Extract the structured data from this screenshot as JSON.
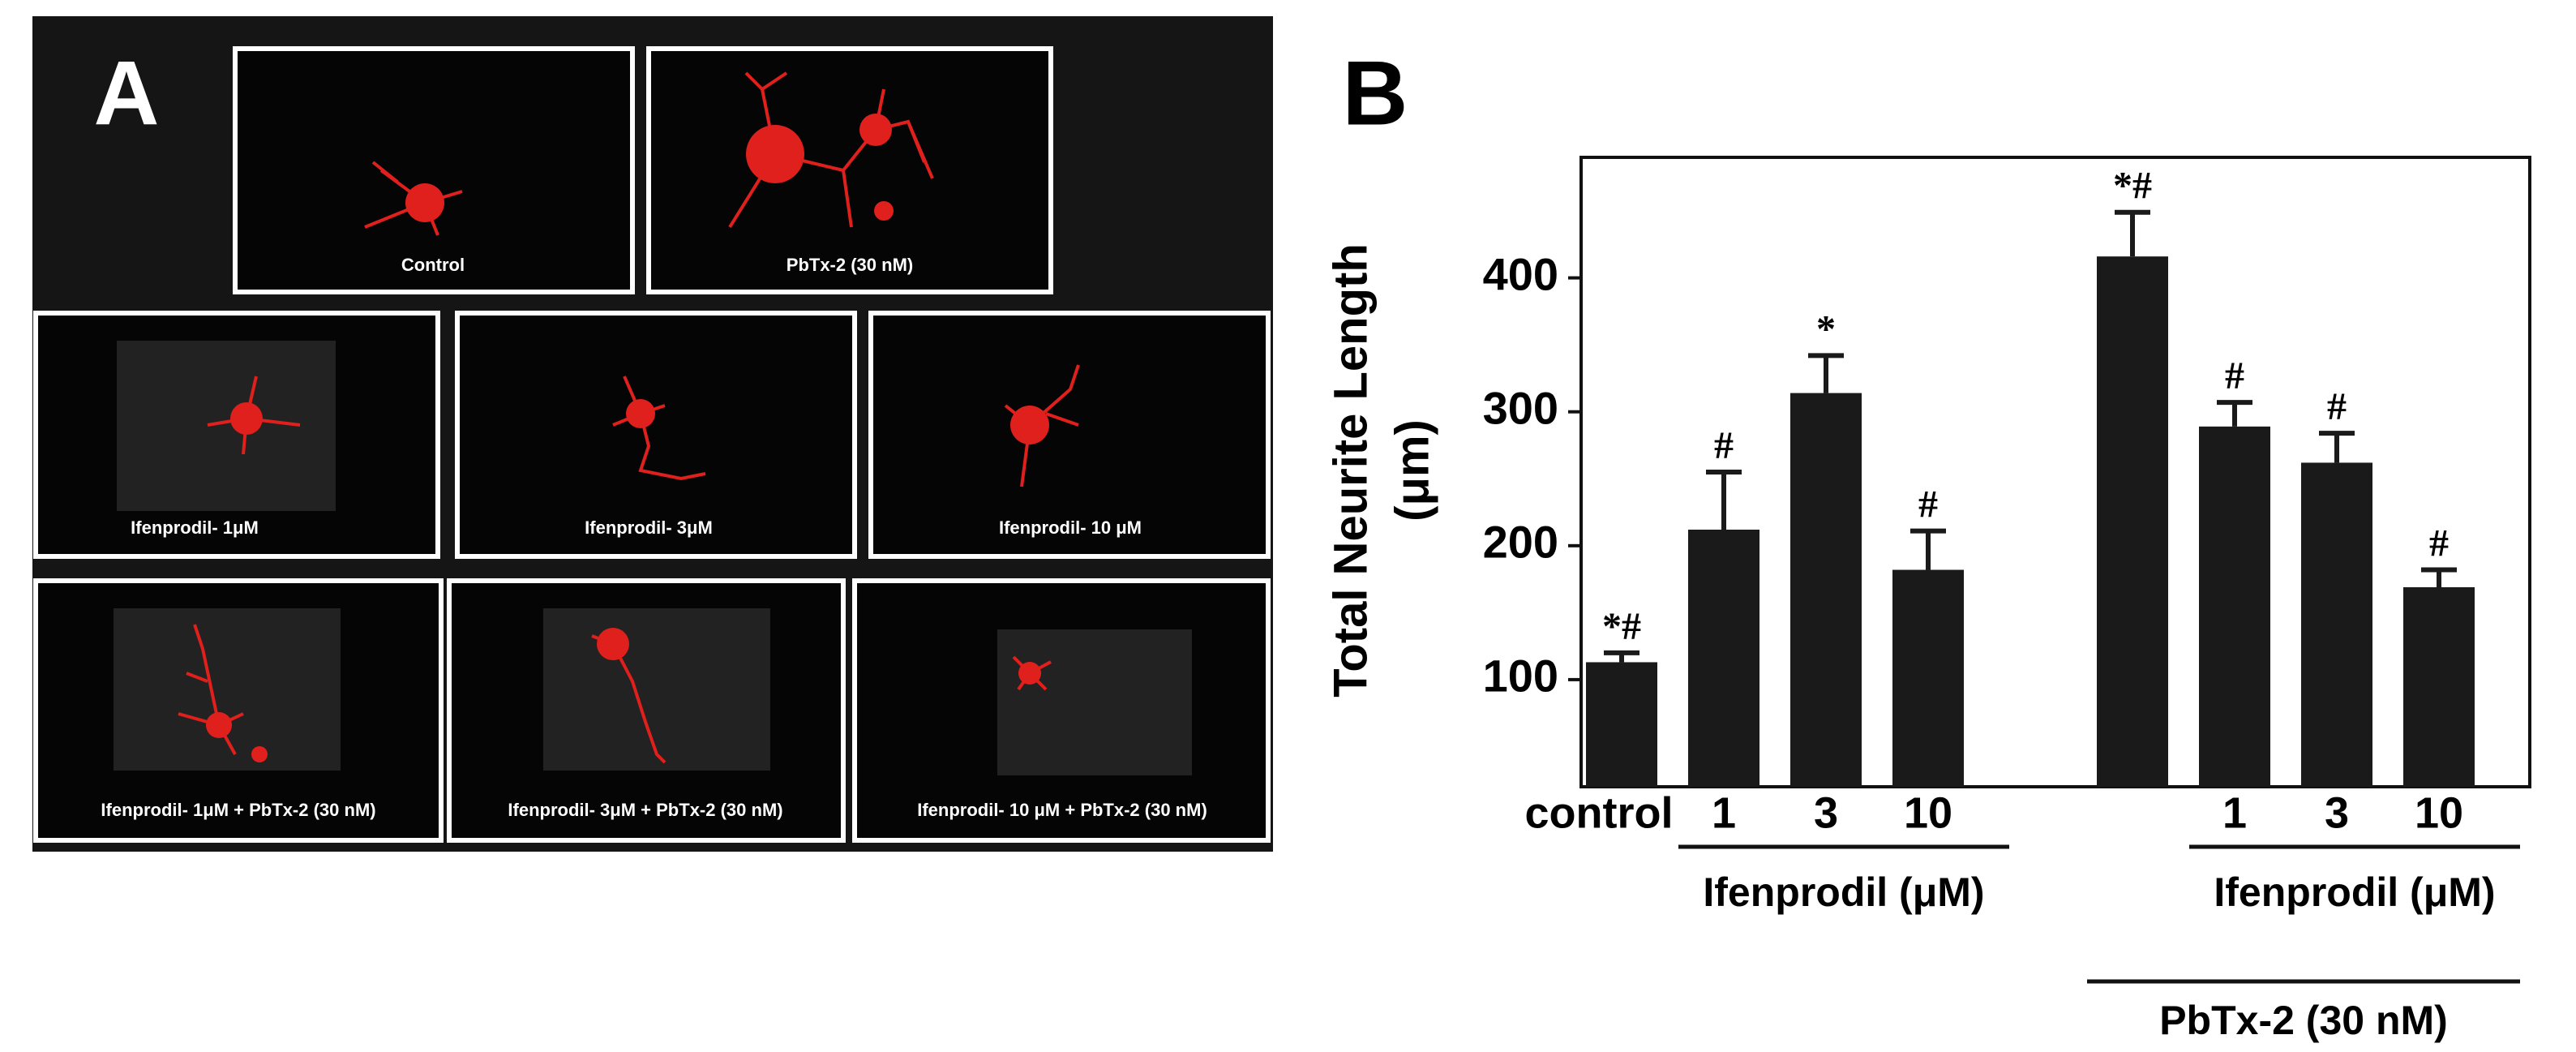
{
  "panel_a": {
    "label": "A",
    "images": [
      "Control",
      "PbTx-2 (30 nM)",
      "Ifenprodil- 1μM",
      "Ifenprodil- 3μM",
      "Ifenprodil- 10 μM",
      "Ifenprodil- 1μM + PbTx-2 (30 nM)",
      "Ifenprodil- 3μM + PbTx-2 (30 nM)",
      "Ifenprodil- 10 μM + PbTx-2 (30 nM)"
    ]
  },
  "chart_data": {
    "type": "bar",
    "panel_label": "B",
    "y_label": [
      "Total Neurite Length",
      "(μm)"
    ],
    "categories": [
      "control",
      "1",
      "3",
      "10",
      null,
      null,
      "1",
      "3",
      "10"
    ],
    "values": [
      113,
      212,
      314,
      182,
      null,
      416,
      289,
      262,
      169
    ],
    "errors": [
      7,
      43,
      28,
      29,
      null,
      33,
      18,
      22,
      13
    ],
    "annotations": [
      "*#",
      "#",
      "*",
      "#",
      null,
      "*#",
      "#",
      "#",
      "#"
    ],
    "groups": [
      {
        "label": "Ifenprodil (μM)",
        "from": 1,
        "to": 3
      },
      {
        "label": "Ifenprodil (μM)",
        "from": 6,
        "to": 8
      },
      {
        "label": "PbTx-2 (30 nM)",
        "from": 5,
        "to": 8
      }
    ],
    "color": "#1a1a1a",
    "ylim": [
      20,
      490
    ],
    "yticks": [
      100,
      200,
      300,
      400
    ]
  }
}
